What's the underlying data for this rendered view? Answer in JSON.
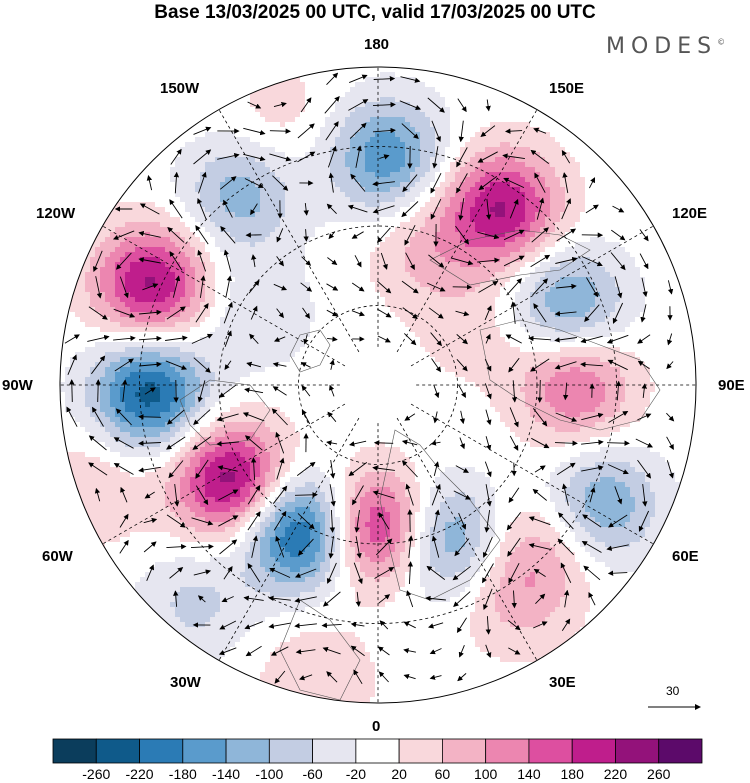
{
  "title": "Base 13/03/2025 00 UTC, valid 17/03/2025 00 UTC",
  "brand": "MODES",
  "brand_mark": "©",
  "longitude_labels": {
    "n180": "180",
    "w150": "150W",
    "e150": "150E",
    "w120": "120W",
    "e120": "120E",
    "w90": "90W",
    "e90": "90E",
    "w60": "60W",
    "e60": "60E",
    "w30": "30W",
    "e30": "30E",
    "s0": "0"
  },
  "vector_scale": {
    "label": "30"
  },
  "colorbar": {
    "levels": [
      "-260",
      "-220",
      "-180",
      "-140",
      "-100",
      "-60",
      "-20",
      "20",
      "60",
      "100",
      "140",
      "180",
      "220",
      "260"
    ],
    "colors": [
      "#0b3d5c",
      "#0f5a8a",
      "#2b7bb5",
      "#5a9bcc",
      "#8fb6d9",
      "#c3cde3",
      "#e6e6f0",
      "#ffffff",
      "#f9d8dc",
      "#f3b3c5",
      "#ec86b0",
      "#dd4fa0",
      "#bf1e8c",
      "#93127a",
      "#5c0a6a"
    ]
  },
  "anomalies": [
    {
      "lon": 0,
      "r": 0.45,
      "v": 240
    },
    {
      "lon": 23,
      "r": 0.52,
      "v": -170
    },
    {
      "lon": -28,
      "r": 0.52,
      "v": -260
    },
    {
      "lon": -57,
      "r": 0.55,
      "v": 250
    },
    {
      "lon": -88,
      "r": 0.72,
      "v": -240
    },
    {
      "lon": -114,
      "r": 0.78,
      "v": 230
    },
    {
      "lon": -144,
      "r": 0.74,
      "v": -120
    },
    {
      "lon": 178,
      "r": 0.72,
      "v": -170
    },
    {
      "lon": 145,
      "r": 0.68,
      "v": 220
    },
    {
      "lon": 113,
      "r": 0.65,
      "v": -150
    },
    {
      "lon": 90,
      "r": 0.62,
      "v": 150
    },
    {
      "lon": 62,
      "r": 0.8,
      "v": -140
    },
    {
      "lon": 45,
      "r": 0.72,
      "v": 80
    },
    {
      "lon": 33,
      "r": 0.8,
      "v": 70
    },
    {
      "lon": -12,
      "r": 0.95,
      "v": 60
    },
    {
      "lon": -40,
      "r": 0.9,
      "v": -70
    },
    {
      "lon": -70,
      "r": 0.95,
      "v": 60
    },
    {
      "lon": -160,
      "r": 0.9,
      "v": 40
    },
    {
      "lon": 160,
      "r": 0.45,
      "v": 70
    },
    {
      "lon": 120,
      "r": 0.35,
      "v": 40
    },
    {
      "lon": -120,
      "r": 0.45,
      "v": -60
    }
  ]
}
